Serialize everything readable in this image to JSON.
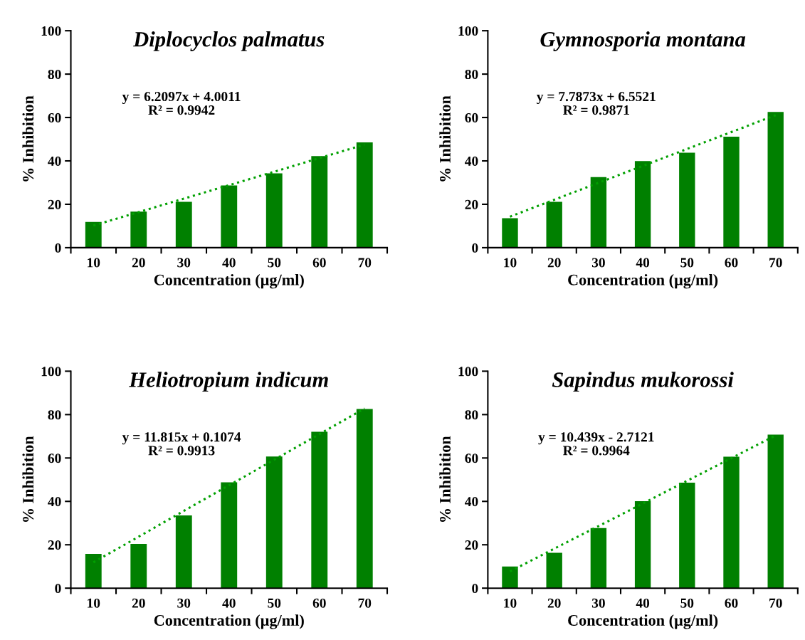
{
  "chart_data": [
    {
      "type": "bar",
      "title": "Diplocyclos palmatus",
      "xlabel": "Concentration (µg/ml)",
      "ylabel": "% Inhibition",
      "categories": [
        "10",
        "20",
        "30",
        "40",
        "50",
        "60",
        "70"
      ],
      "ylim": [
        0,
        100
      ],
      "yticks": [
        0,
        20,
        40,
        60,
        80,
        100
      ],
      "grid": false,
      "annotations": [
        "y = 6.2097x + 4.0011\nR² = 0.9942"
      ],
      "series": [
        {
          "color": "#008000",
          "values": [
            11.9,
            16.6,
            21.1,
            28.7,
            34.3,
            42.2,
            48.5
          ]
        },
        {
          "type": "line",
          "line_style": "dotted",
          "marker": "none",
          "color": "#00a000",
          "values": [
            10.2,
            16.4,
            22.6,
            28.8,
            35.0,
            41.3,
            47.5
          ]
        }
      ]
    },
    {
      "type": "bar",
      "title": "Gymnosporia montana",
      "xlabel": "Concentration (µg/ml)",
      "ylabel": "% Inhibition",
      "categories": [
        "10",
        "20",
        "30",
        "40",
        "50",
        "60",
        "70"
      ],
      "ylim": [
        0,
        100
      ],
      "yticks": [
        0,
        20,
        40,
        60,
        80,
        100
      ],
      "grid": false,
      "annotations": [
        "y = 7.7873x + 6.5521\nR² = 0.9871"
      ],
      "series": [
        {
          "color": "#008000",
          "values": [
            13.6,
            21.1,
            32.5,
            39.9,
            43.8,
            51.2,
            62.6
          ]
        },
        {
          "type": "line",
          "line_style": "dotted",
          "marker": "none",
          "color": "#00a000",
          "values": [
            14.3,
            22.1,
            29.9,
            37.7,
            45.5,
            53.3,
            61.1
          ]
        }
      ]
    },
    {
      "type": "bar",
      "title": "Heliotropium indicum",
      "xlabel": "Concentration (µg/ml)",
      "ylabel": "% Inhibition",
      "categories": [
        "10",
        "20",
        "30",
        "40",
        "50",
        "60",
        "70"
      ],
      "ylim": [
        0,
        100
      ],
      "yticks": [
        0,
        20,
        40,
        60,
        80,
        100
      ],
      "grid": false,
      "annotations": [
        "y = 11.815x + 0.1074\nR² = 0.9913"
      ],
      "series": [
        {
          "color": "#008000",
          "values": [
            15.8,
            20.4,
            33.5,
            48.8,
            60.7,
            72.1,
            82.6
          ]
        },
        {
          "type": "line",
          "line_style": "dotted",
          "marker": "none",
          "color": "#00a000",
          "values": [
            11.9,
            23.7,
            35.6,
            47.4,
            59.2,
            71.0,
            82.8
          ]
        }
      ]
    },
    {
      "type": "bar",
      "title": "Sapindus mukorossi",
      "xlabel": "Concentration (µg/ml)",
      "ylabel": "% Inhibition",
      "categories": [
        "10",
        "20",
        "30",
        "40",
        "50",
        "60",
        "70"
      ],
      "ylim": [
        0,
        100
      ],
      "yticks": [
        0,
        20,
        40,
        60,
        80,
        100
      ],
      "grid": false,
      "annotations": [
        "y = 10.439x - 2.7121\nR² = 0.9964"
      ],
      "series": [
        {
          "color": "#008000",
          "values": [
            10.0,
            16.3,
            27.7,
            40.1,
            48.6,
            60.6,
            70.8
          ]
        },
        {
          "type": "line",
          "line_style": "dotted",
          "marker": "none",
          "color": "#00a000",
          "values": [
            7.7,
            18.2,
            28.6,
            39.0,
            49.5,
            59.9,
            70.4
          ]
        }
      ]
    }
  ]
}
